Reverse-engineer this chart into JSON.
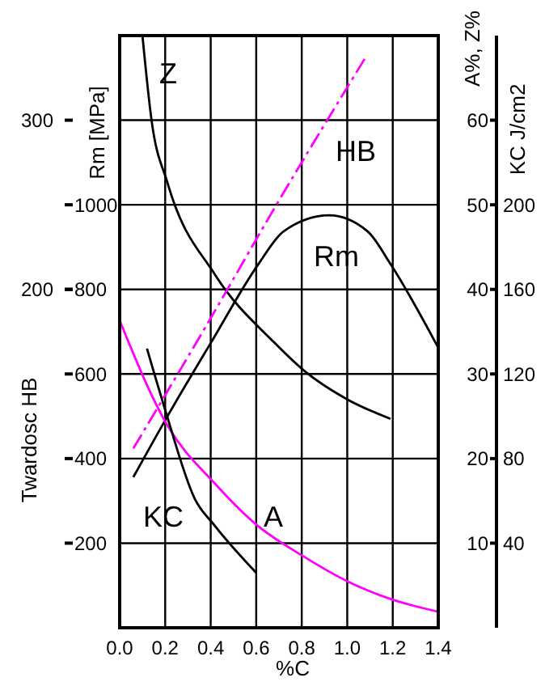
{
  "chart_data": [
    {
      "type": "line",
      "xlabel": "%C",
      "ylabel": "Twardosc HB",
      "y2label": "Rm [MPa]",
      "y3label": "A%, Z%",
      "xlim": [
        0,
        1.4
      ],
      "xticks": [
        {
          "value": 0,
          "label": "0.0"
        },
        0.2,
        0.4,
        0.6,
        0.8,
        {
          "value": 1,
          "label": "1.0"
        },
        1.2,
        1.4
      ],
      "ylim": [
        0,
        350
      ],
      "yticks": [
        200,
        300
      ],
      "y2lim": [
        0,
        1400
      ],
      "y2ticks": [
        200,
        400,
        600,
        800,
        1000
      ],
      "y3lim": [
        0,
        70
      ],
      "y3ticks": [
        10,
        20,
        30,
        40,
        50,
        60
      ],
      "grid": true,
      "marker": "none",
      "series": [
        {
          "name": "Z",
          "color": "#000000",
          "axis": "y3",
          "x": [
            0.1,
            0.14,
            0.21,
            0.42,
            0.68,
            0.81,
            1.0,
            1.19
          ],
          "values": [
            70,
            60,
            52.6,
            41.7,
            33.7,
            30.4,
            27,
            24.7
          ]
        },
        {
          "name": "HB",
          "color": "#ff00ff",
          "line_style": "dashed",
          "x": [
            0.06,
            0.4,
            0.68,
            1.08
          ],
          "values": [
            106,
            183,
            248,
            337
          ]
        },
        {
          "name": "Rm",
          "color": "#000000",
          "axis": "y2",
          "x": [
            0.06,
            0.21,
            0.4,
            0.61,
            0.72,
            0.92,
            1.09,
            1.19,
            1.4
          ],
          "values": [
            356,
            500,
            673,
            860,
            937,
            975,
            937,
            860,
            662
          ]
        },
        {
          "name": "A",
          "color": "#ff00ff",
          "axis": "y3",
          "x": [
            0,
            0.21,
            0.42,
            0.6,
            0.81,
            1.0,
            1.19,
            1.4
          ],
          "values": [
            36.3,
            23.9,
            17,
            12.2,
            8.4,
            5.5,
            3.4,
            1.9
          ]
        }
      ]
    },
    {
      "type": "line",
      "ylabel": "KC J/cm2",
      "xlim": [
        0,
        1.4
      ],
      "ylim": [
        0,
        280
      ],
      "yticks": [
        40,
        80,
        120,
        160,
        200
      ],
      "tick_labels": "y",
      "marker": "none",
      "series": [
        {
          "name": "KC",
          "color": "#000000",
          "x": [
            0.12,
            0.2,
            0.33,
            0.42,
            0.6
          ],
          "values": [
            132,
            103,
            61,
            48,
            26
          ]
        }
      ]
    }
  ]
}
